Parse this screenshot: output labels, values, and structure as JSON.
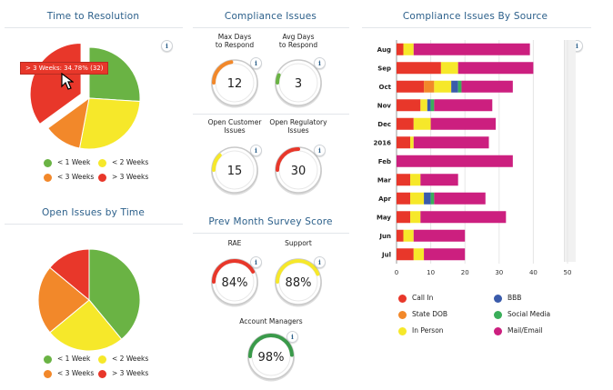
{
  "colors": {
    "green": "#6ab344",
    "yellow": "#f6e82a",
    "orange": "#f2882a",
    "red": "#e8372a",
    "blue": "#3a5bab",
    "teal": "#3aae5a",
    "magenta": "#cc1f7f",
    "title": "#2b5f8a"
  },
  "time_to_resolution": {
    "title": "Time to Resolution",
    "tooltip": "> 3 Weeks: 34.78% (32)",
    "info": "i",
    "legend": [
      "< 1 Week",
      "< 2 Weeks",
      "< 3 Weeks",
      "> 3 Weeks"
    ]
  },
  "open_issues": {
    "title": "Open Issues by Time",
    "legend": [
      "< 1 Week",
      "< 2 Weeks",
      "< 3 Weeks",
      "> 3 Weeks"
    ]
  },
  "compliance": {
    "title": "Compliance Issues",
    "gauges": [
      {
        "label": "Max Days\nto Respond",
        "value": "12",
        "pct": 0.45,
        "color": "#f2882a"
      },
      {
        "label": "Avg Days\nto Respond",
        "value": "3",
        "pct": 0.12,
        "color": "#6ab344"
      },
      {
        "label": "Open Customer\nIssues",
        "value": "15",
        "pct": 0.25,
        "color": "#f6e82a"
      },
      {
        "label": "Open Regulatory\nIssues",
        "value": "30",
        "pct": 0.5,
        "color": "#e8372a"
      }
    ],
    "info": "i"
  },
  "survey": {
    "title": "Prev Month Survey Score",
    "gauges": [
      {
        "label": "RAE",
        "value": "84%",
        "pct": 0.84,
        "color": "#e8372a"
      },
      {
        "label": "Support",
        "value": "88%",
        "pct": 0.88,
        "color": "#f6e82a"
      },
      {
        "label": "Account Managers",
        "value": "98%",
        "pct": 0.98,
        "color": "#3a9a4a"
      }
    ]
  },
  "chart_data": [
    {
      "type": "pie",
      "title": "Time to Resolution",
      "categories": [
        "< 1 Week",
        "< 2 Weeks",
        "< 3 Weeks",
        "> 3 Weeks"
      ],
      "values": [
        26,
        27,
        12,
        35
      ]
    },
    {
      "type": "pie",
      "title": "Open Issues by Time",
      "categories": [
        "< 1 Week",
        "< 2 Weeks",
        "< 3 Weeks",
        "> 3 Weeks"
      ],
      "values": [
        39,
        25,
        22,
        14
      ]
    },
    {
      "type": "bar",
      "orientation": "horizontal",
      "stacked": true,
      "title": "Compliance Issues By Source",
      "categories": [
        "Aug",
        "Sep",
        "Oct",
        "Nov",
        "Dec",
        "2016",
        "Feb",
        "Mar",
        "Apr",
        "May",
        "Jun",
        "Jul"
      ],
      "xlim": [
        0,
        50
      ],
      "xticks": [
        "0",
        "10",
        "20",
        "30",
        "40",
        "50"
      ],
      "series": [
        {
          "name": "Call In",
          "values": [
            2,
            13,
            8,
            7,
            5,
            4,
            0,
            4,
            4,
            4,
            2,
            5
          ]
        },
        {
          "name": "State DOB",
          "values": [
            0,
            0,
            3,
            0,
            0,
            0,
            0,
            0,
            0,
            0,
            0,
            0
          ]
        },
        {
          "name": "In Person",
          "values": [
            3,
            5,
            5,
            2,
            5,
            1,
            0,
            3,
            4,
            3,
            3,
            3
          ]
        },
        {
          "name": "BBB",
          "values": [
            0,
            0,
            2,
            1,
            0,
            0,
            0,
            0,
            2,
            0,
            0,
            0
          ]
        },
        {
          "name": "Social Media",
          "values": [
            0,
            0,
            1,
            1,
            0,
            0,
            0,
            0,
            1,
            0,
            0,
            0
          ]
        },
        {
          "name": "Mail/Email",
          "values": [
            34,
            22,
            15,
            17,
            19,
            22,
            34,
            11,
            15,
            25,
            15,
            12
          ]
        }
      ],
      "legend": [
        "Call In",
        "BBB",
        "State DOB",
        "Social Media",
        "In Person",
        "Mail/Email"
      ]
    }
  ]
}
